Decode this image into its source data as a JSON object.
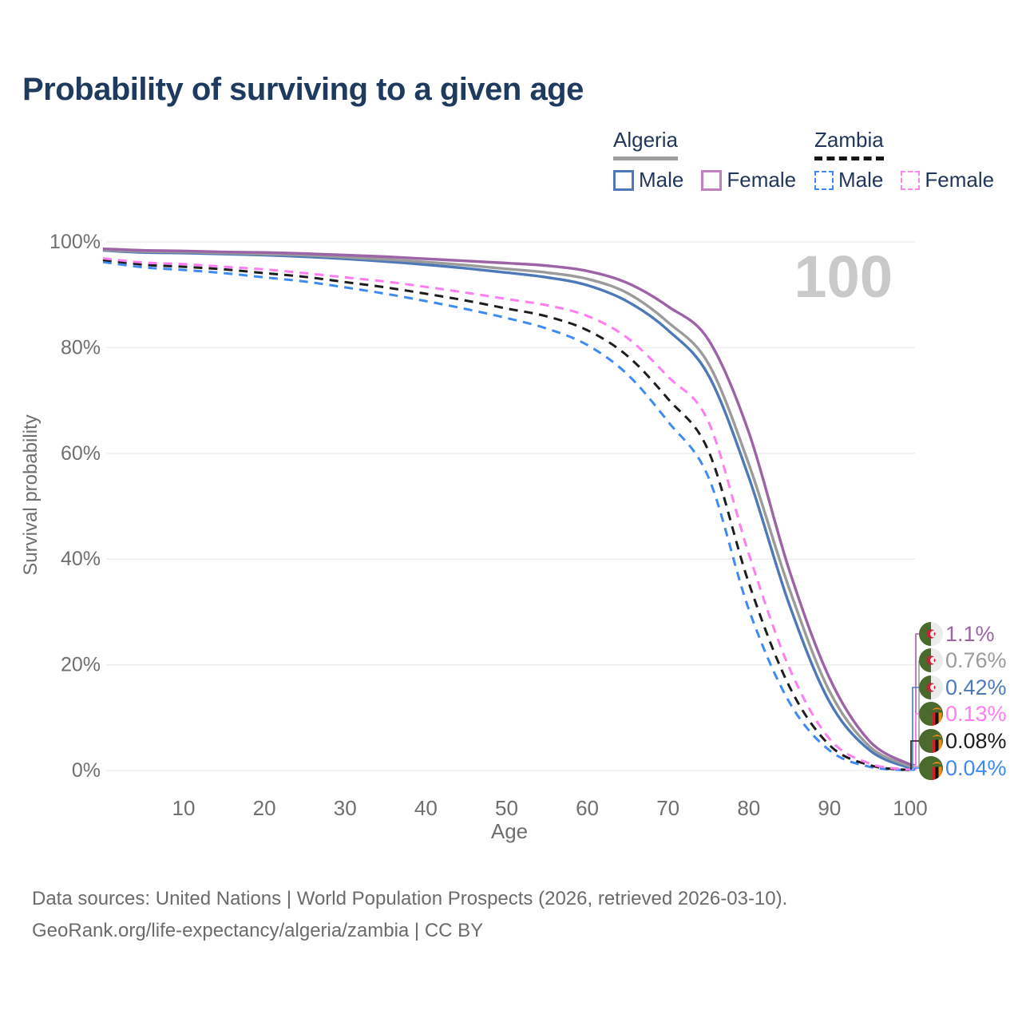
{
  "title": "Probability of surviving to a given age",
  "legend": {
    "groups": [
      {
        "country": "Algeria",
        "underline_style": "solid",
        "underline_color": "#9e9e9e",
        "items": [
          {
            "label": "Male",
            "swatch_color": "#4e79b8",
            "swatch_style": "solid"
          },
          {
            "label": "Female",
            "swatch_color": "#c47fc0",
            "swatch_style": "solid"
          }
        ]
      },
      {
        "country": "Zambia",
        "underline_style": "dashed",
        "underline_color": "#151515",
        "items": [
          {
            "label": "Male",
            "swatch_color": "#3f8af2",
            "swatch_style": "dashed"
          },
          {
            "label": "Female",
            "swatch_color": "#ff85ee",
            "swatch_style": "dashed"
          }
        ]
      }
    ]
  },
  "chart_data": {
    "type": "line",
    "title": "Probability of surviving to a given age",
    "xlabel": "Age",
    "ylabel": "Survival probability",
    "age_cursor": "100",
    "xlim": [
      0,
      100
    ],
    "ylim": [
      0,
      100
    ],
    "grid": "horizontal",
    "x_ticks": [
      10,
      20,
      30,
      40,
      50,
      60,
      70,
      80,
      90,
      100
    ],
    "y_ticks": [
      {
        "value": 100,
        "label": "100%"
      },
      {
        "value": 80,
        "label": "80%"
      },
      {
        "value": 60,
        "label": "60%"
      },
      {
        "value": 40,
        "label": "40%"
      },
      {
        "value": 20,
        "label": "20%"
      },
      {
        "value": 0,
        "label": "0%"
      }
    ],
    "x": [
      0,
      5,
      10,
      15,
      20,
      25,
      30,
      35,
      40,
      45,
      50,
      55,
      60,
      65,
      70,
      75,
      80,
      85,
      90,
      95,
      100
    ],
    "series": [
      {
        "name": "Algeria Female",
        "flag": "algeria",
        "style": "solid",
        "color": "#9c63a6",
        "end_label": "1.1%",
        "values": [
          98.7,
          98.4,
          98.3,
          98.1,
          98.0,
          97.8,
          97.5,
          97.2,
          96.8,
          96.4,
          96.0,
          95.5,
          94.5,
          92.2,
          87.8,
          81.5,
          64.0,
          38.0,
          17.5,
          5.5,
          1.1
        ]
      },
      {
        "name": "Algeria Both sexes",
        "flag": "algeria",
        "style": "solid",
        "color": "#9b9b9b",
        "end_label": "0.76%",
        "values": [
          98.5,
          98.2,
          98.1,
          97.9,
          97.7,
          97.5,
          97.1,
          96.7,
          96.2,
          95.6,
          94.9,
          94.2,
          93.0,
          90.3,
          84.8,
          77.0,
          58.0,
          34.5,
          15.0,
          4.5,
          0.76
        ]
      },
      {
        "name": "Algeria Male",
        "flag": "algeria",
        "style": "solid",
        "color": "#4e79b8",
        "end_label": "0.42%",
        "values": [
          98.4,
          98.0,
          97.9,
          97.7,
          97.5,
          97.2,
          96.8,
          96.3,
          95.7,
          95.0,
          94.2,
          93.3,
          91.8,
          88.7,
          83.3,
          74.8,
          55.5,
          31.5,
          13.0,
          3.8,
          0.42
        ]
      },
      {
        "name": "Zambia Female",
        "flag": "zambia",
        "style": "dashed",
        "color": "#ff7df0",
        "end_label": "0.13%",
        "values": [
          96.9,
          96.1,
          95.8,
          95.3,
          94.8,
          94.1,
          93.3,
          92.5,
          91.5,
          90.4,
          89.2,
          88.0,
          86.0,
          81.8,
          74.5,
          66.0,
          41.0,
          19.5,
          6.0,
          1.3,
          0.13
        ]
      },
      {
        "name": "Zambia Both sexes",
        "flag": "zambia",
        "style": "dashed",
        "color": "#1d1d1d",
        "end_label": "0.08%",
        "values": [
          96.6,
          95.7,
          95.3,
          94.8,
          94.1,
          93.4,
          92.4,
          91.4,
          90.2,
          88.9,
          87.4,
          85.9,
          83.3,
          78.4,
          70.3,
          60.5,
          35.5,
          16.0,
          4.8,
          1.0,
          0.08
        ]
      },
      {
        "name": "Zambia Male",
        "flag": "zambia",
        "style": "dashed",
        "color": "#3f8af2",
        "end_label": "0.04%",
        "values": [
          96.2,
          95.2,
          94.7,
          94.1,
          93.3,
          92.5,
          91.4,
          90.2,
          88.8,
          87.3,
          85.6,
          83.6,
          80.5,
          74.9,
          66.0,
          55.5,
          30.5,
          13.0,
          3.8,
          0.7,
          0.04
        ]
      }
    ],
    "flag_colors": {
      "algeria_green": "#4a6a2d",
      "algeria_white": "#ececec",
      "algeria_red": "#cc2036",
      "zambia_green": "#4a6a2d",
      "zambia_red": "#d0202a",
      "zambia_black": "#151515",
      "zambia_orange": "#f08a18"
    }
  },
  "footer": {
    "line1": "Data sources: United Nations | World Population Prospects (2026, retrieved 2026-03-10).",
    "line2": "GeoRank.org/life-expectancy/algeria/zambia | CC BY"
  }
}
